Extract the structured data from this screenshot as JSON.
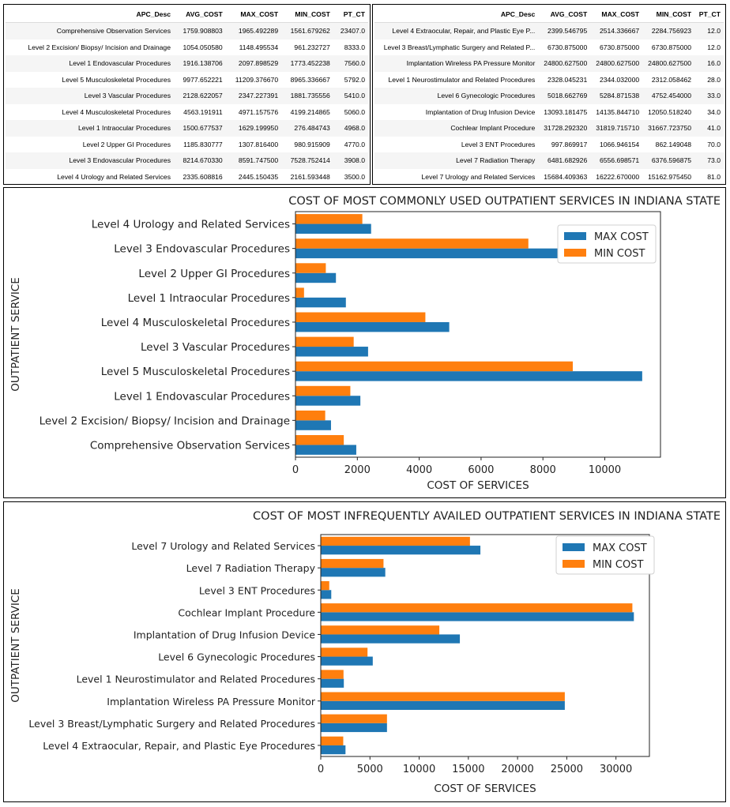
{
  "tables": [
    {
      "columns": [
        "APC_Desc",
        "AVG_COST",
        "MAX_COST",
        "MIN_COST",
        "PT_CT"
      ],
      "rows": [
        [
          "Comprehensive Observation Services",
          "1759.908803",
          "1965.492289",
          "1561.679262",
          "23407.0"
        ],
        [
          "Level 2 Excision/ Biopsy/ Incision and Drainage",
          "1054.050580",
          "1148.495534",
          "961.232727",
          "8333.0"
        ],
        [
          "Level 1 Endovascular Procedures",
          "1916.138706",
          "2097.898529",
          "1773.452238",
          "7560.0"
        ],
        [
          "Level 5 Musculoskeletal Procedures",
          "9977.652221",
          "11209.376670",
          "8965.336667",
          "5792.0"
        ],
        [
          "Level 3 Vascular Procedures",
          "2128.622057",
          "2347.227391",
          "1881.735556",
          "5410.0"
        ],
        [
          "Level 4 Musculoskeletal Procedures",
          "4563.191911",
          "4971.157576",
          "4199.214865",
          "5060.0"
        ],
        [
          "Level 1 Intraocular Procedures",
          "1500.677537",
          "1629.199950",
          "276.484743",
          "4968.0"
        ],
        [
          "Level 2 Upper GI Procedures",
          "1185.830777",
          "1307.816400",
          "980.915909",
          "4770.0"
        ],
        [
          "Level 3 Endovascular Procedures",
          "8214.670330",
          "8591.747500",
          "7528.752414",
          "3908.0"
        ],
        [
          "Level 4 Urology and Related Services",
          "2335.608816",
          "2445.150435",
          "2161.593448",
          "3500.0"
        ]
      ]
    },
    {
      "columns": [
        "APC_Desc",
        "AVG_COST",
        "MAX_COST",
        "MIN_COST",
        "PT_CT"
      ],
      "rows": [
        [
          "Level 4 Extraocular, Repair, and Plastic Eye P...",
          "2399.546795",
          "2514.336667",
          "2284.756923",
          "12.0"
        ],
        [
          "Level 3 Breast/Lymphatic Surgery and Related P...",
          "6730.875000",
          "6730.875000",
          "6730.875000",
          "12.0"
        ],
        [
          "Implantation Wireless PA Pressure Monitor",
          "24800.627500",
          "24800.627500",
          "24800.627500",
          "16.0"
        ],
        [
          "Level 1 Neurostimulator and Related Procedures",
          "2328.045231",
          "2344.032000",
          "2312.058462",
          "28.0"
        ],
        [
          "Level 6 Gynecologic Procedures",
          "5018.662769",
          "5284.871538",
          "4752.454000",
          "33.0"
        ],
        [
          "Implantation of Drug Infusion Device",
          "13093.181475",
          "14135.844710",
          "12050.518240",
          "34.0"
        ],
        [
          "Cochlear Implant Procedure",
          "31728.292320",
          "31819.715710",
          "31667.723750",
          "41.0"
        ],
        [
          "Level 3 ENT Procedures",
          "997.869917",
          "1066.946154",
          "862.149048",
          "70.0"
        ],
        [
          "Level 7 Radiation Therapy",
          "6481.682926",
          "6556.698571",
          "6376.596875",
          "73.0"
        ],
        [
          "Level 7 Urology and Related Services",
          "15684.409363",
          "16222.670000",
          "15162.975450",
          "81.0"
        ]
      ]
    }
  ],
  "chart_data": [
    {
      "type": "bar",
      "orientation": "horizontal",
      "title": "COST OF MOST COMMONLY USED OUTPATIENT SERVICES IN INDIANA STATE",
      "xlabel": "COST OF SERVICES",
      "ylabel": "OUTPATIENT SERVICE",
      "xlim": [
        0,
        11800
      ],
      "xticks": [
        0,
        2000,
        4000,
        6000,
        8000,
        10000
      ],
      "xtick_labels": [
        "0",
        "2000",
        "4000",
        "6000",
        "8000",
        "10000"
      ],
      "legend_position": "top-right",
      "categories": [
        "Comprehensive Observation Services",
        "Level 2 Excision/ Biopsy/ Incision and Drainage",
        "Level 1 Endovascular Procedures",
        "Level 5 Musculoskeletal Procedures",
        "Level 3 Vascular Procedures",
        "Level 4 Musculoskeletal Procedures",
        "Level 1 Intraocular Procedures",
        "Level 2 Upper GI Procedures",
        "Level 3 Endovascular Procedures",
        "Level 4 Urology and Related Services"
      ],
      "series": [
        {
          "name": "MAX COST",
          "color": "#1f77b4",
          "values": [
            1965.49,
            1148.5,
            2097.9,
            11209.38,
            2347.23,
            4971.16,
            1629.2,
            1307.82,
            8591.75,
            2445.15
          ]
        },
        {
          "name": "MIN COST",
          "color": "#ff7f0e",
          "values": [
            1561.68,
            961.23,
            1773.45,
            8965.34,
            1881.74,
            4199.21,
            276.48,
            980.92,
            7528.75,
            2161.59
          ]
        }
      ]
    },
    {
      "type": "bar",
      "orientation": "horizontal",
      "title": "COST OF MOST INFREQUENTLY AVAILED OUTPATIENT SERVICES IN INDIANA STATE",
      "xlabel": "COST OF SERVICES",
      "ylabel": "OUTPATIENT SERVICE",
      "xlim": [
        0,
        33400
      ],
      "xticks": [
        0,
        5000,
        10000,
        15000,
        20000,
        25000,
        30000
      ],
      "xtick_labels": [
        "0",
        "5000",
        "10000",
        "15000",
        "20000",
        "25000",
        "30000"
      ],
      "legend_position": "top-right",
      "categories": [
        "Level 4 Extraocular, Repair, and Plastic Eye Procedures",
        "Level 3 Breast/Lymphatic Surgery and Related Procedures",
        "Implantation Wireless PA Pressure Monitor",
        "Level 1 Neurostimulator and Related Procedures",
        "Level 6 Gynecologic Procedures",
        "Implantation of Drug Infusion Device",
        "Cochlear Implant Procedure",
        "Level 3 ENT Procedures",
        "Level 7 Radiation Therapy",
        "Level 7 Urology and Related Services"
      ],
      "series": [
        {
          "name": "MAX COST",
          "color": "#1f77b4",
          "values": [
            2514.34,
            6730.88,
            24800.63,
            2344.03,
            5284.87,
            14135.84,
            31819.72,
            1066.95,
            6556.7,
            16222.67
          ]
        },
        {
          "name": "MIN COST",
          "color": "#ff7f0e",
          "values": [
            2284.76,
            6730.88,
            24800.63,
            2312.06,
            4752.45,
            12050.52,
            31667.72,
            862.15,
            6376.6,
            15162.98
          ]
        }
      ]
    }
  ]
}
